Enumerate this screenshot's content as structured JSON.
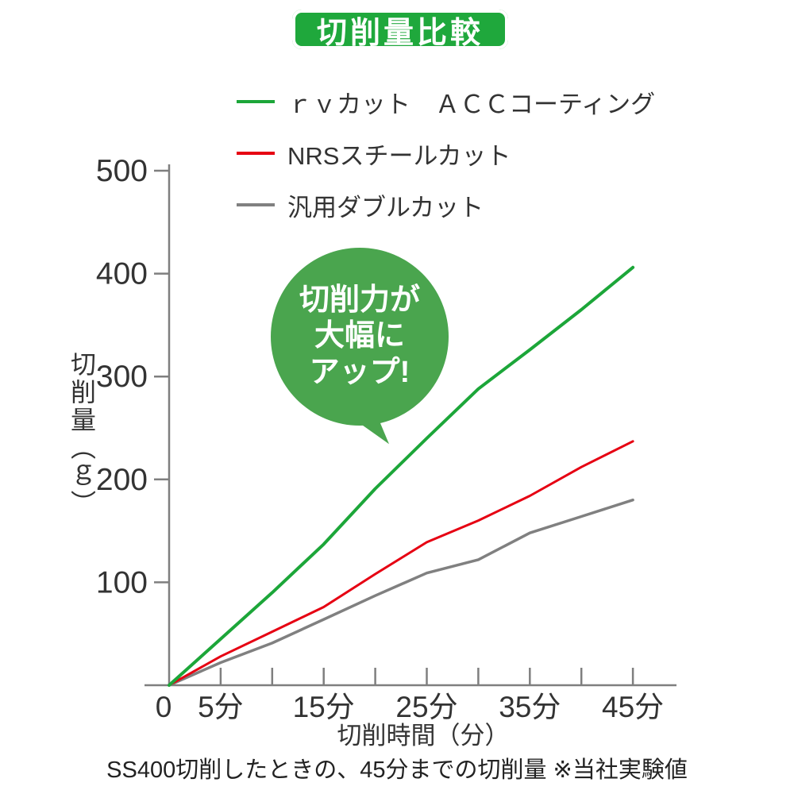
{
  "header": {
    "title": "切削量比較",
    "badge_color": "#1fa83c"
  },
  "bubble": {
    "lines": [
      "切削力が",
      "大幅に",
      "アップ!"
    ],
    "color": "#4aa54e"
  },
  "caption": "SS400切削したときの、45分までの切削量 ※当社実験値",
  "chart_data": {
    "type": "line",
    "title": "切削量比較",
    "xlabel": "切削時間（分）",
    "ylabel": "切削量（ｇ）",
    "x": [
      0,
      5,
      10,
      15,
      20,
      25,
      30,
      35,
      40,
      45
    ],
    "series": [
      {
        "name": "ｒｖカット　ＡＣＣコーティング",
        "color": "#1ca639",
        "width": 4,
        "values": [
          0,
          45,
          90,
          137,
          191,
          240,
          288,
          326,
          365,
          406
        ]
      },
      {
        "name": "NRSスチールカット",
        "color": "#e60012",
        "width": 3,
        "values": [
          0,
          28,
          52,
          76,
          108,
          139,
          160,
          184,
          212,
          237
        ]
      },
      {
        "name": "汎用ダブルカット",
        "color": "#808080",
        "width": 3.5,
        "values": [
          0,
          22,
          41,
          64,
          87,
          109,
          122,
          148,
          164,
          180
        ]
      }
    ],
    "x_ticks": [
      5,
      10,
      15,
      20,
      25,
      30,
      35,
      40,
      45
    ],
    "x_tick_labels": [
      {
        "t": 0,
        "text": "0"
      },
      {
        "t": 5,
        "text": "5分"
      },
      {
        "t": 15,
        "text": "15分"
      },
      {
        "t": 25,
        "text": "25分"
      },
      {
        "t": 35,
        "text": "35分"
      },
      {
        "t": 45,
        "text": "45分"
      }
    ],
    "y_ticks": [
      100,
      200,
      300,
      400,
      500
    ],
    "xlim": [
      0,
      49
    ],
    "ylim": [
      0,
      500
    ],
    "grid": false,
    "legend_position": "top-left-above-plot",
    "axis_color": "#7f7f7f",
    "tick_text_color": "#333333"
  }
}
